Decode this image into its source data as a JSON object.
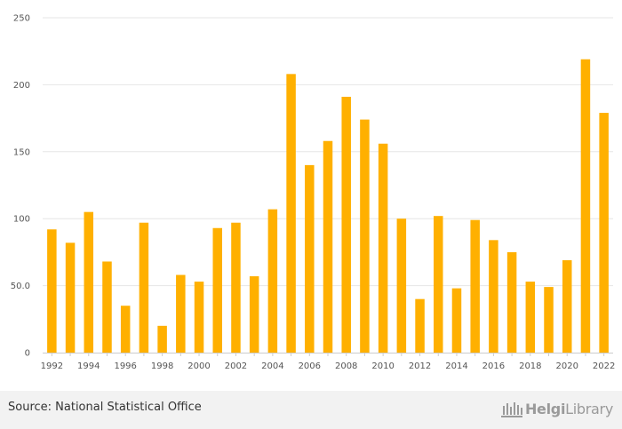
{
  "chart_data": {
    "type": "bar",
    "categories": [
      "1992",
      "1993",
      "1994",
      "1995",
      "1996",
      "1997",
      "1998",
      "1999",
      "2000",
      "2001",
      "2002",
      "2003",
      "2004",
      "2005",
      "2006",
      "2007",
      "2008",
      "2009",
      "2010",
      "2011",
      "2012",
      "2013",
      "2014",
      "2015",
      "2016",
      "2017",
      "2018",
      "2019",
      "2020",
      "2021",
      "2022"
    ],
    "values": [
      92,
      82,
      105,
      68,
      35,
      97,
      20,
      58,
      53,
      93,
      97,
      57,
      107,
      208,
      140,
      158,
      191,
      174,
      156,
      100,
      40,
      102,
      48,
      99,
      84,
      75,
      53,
      49,
      69,
      219,
      179
    ],
    "x_tick_labels": [
      "1992",
      "1994",
      "1996",
      "1998",
      "2000",
      "2002",
      "2004",
      "2006",
      "2008",
      "2010",
      "2012",
      "2014",
      "2016",
      "2018",
      "2020",
      "2022"
    ],
    "y_ticks": [
      0,
      50,
      100,
      150,
      200,
      250
    ],
    "y_tick_labels": [
      "0",
      "50.0",
      "100",
      "150",
      "200",
      "250"
    ],
    "ylim": [
      0,
      250
    ],
    "grid": true,
    "bar_color": "#ffb000",
    "title": "",
    "xlabel": "",
    "ylabel": ""
  },
  "footer": {
    "source": "Source: National Statistical Office",
    "logo_part1": "Helgi",
    "logo_part2": "Library",
    "logo_icon": "library-columns-icon"
  }
}
